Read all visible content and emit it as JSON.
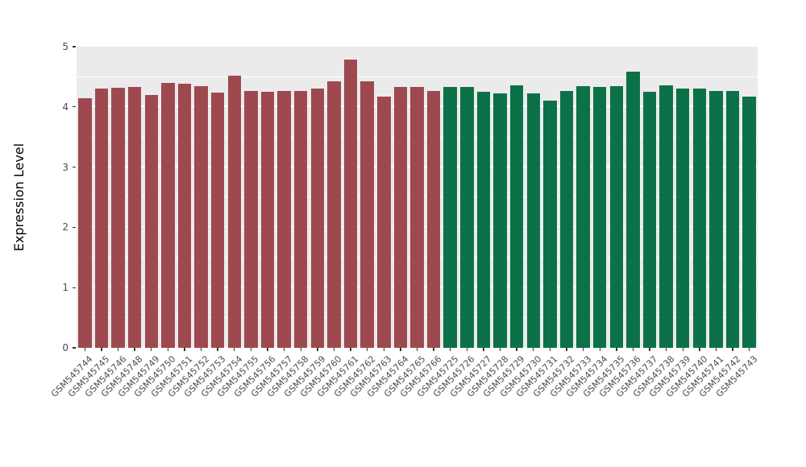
{
  "chart_data": {
    "type": "bar",
    "title": "",
    "xlabel": "",
    "ylabel": "Expression Level",
    "ylim": [
      0,
      5
    ],
    "yticks": [
      0,
      1,
      2,
      3,
      4,
      5
    ],
    "minor_tick_step": 0.5,
    "grid": true,
    "legend_position": "none",
    "panel_background": "#ebebeb",
    "gridline_color": "#ffffff",
    "groups": [
      {
        "name": "group-1",
        "color": "#9e4950",
        "categories": [
          "GSM545744",
          "GSM545745",
          "GSM545746",
          "GSM545748",
          "GSM545749",
          "GSM545750",
          "GSM545751",
          "GSM545752",
          "GSM545753",
          "GSM545754",
          "GSM545755",
          "GSM545756",
          "GSM545757",
          "GSM545758",
          "GSM545759",
          "GSM545760",
          "GSM545761",
          "GSM545762",
          "GSM545763",
          "GSM545764",
          "GSM545765",
          "GSM545766"
        ],
        "values": [
          4.15,
          4.3,
          4.32,
          4.33,
          4.2,
          4.4,
          4.39,
          4.35,
          4.24,
          4.52,
          4.27,
          4.25,
          4.26,
          4.26,
          4.31,
          4.42,
          4.79,
          4.43,
          4.17,
          4.33,
          4.33,
          4.26
        ]
      },
      {
        "name": "group-2",
        "color": "#0d7148",
        "categories": [
          "GSM545725",
          "GSM545726",
          "GSM545727",
          "GSM545728",
          "GSM545729",
          "GSM545730",
          "GSM545731",
          "GSM545732",
          "GSM545733",
          "GSM545734",
          "GSM545735",
          "GSM545736",
          "GSM545737",
          "GSM545738",
          "GSM545739",
          "GSM545740",
          "GSM545741",
          "GSM545742",
          "GSM545743"
        ],
        "values": [
          4.33,
          4.33,
          4.25,
          4.23,
          4.36,
          4.23,
          4.1,
          4.27,
          4.34,
          4.33,
          4.34,
          4.58,
          4.25,
          4.36,
          4.3,
          4.31,
          4.26,
          4.27,
          4.17
        ]
      }
    ]
  }
}
